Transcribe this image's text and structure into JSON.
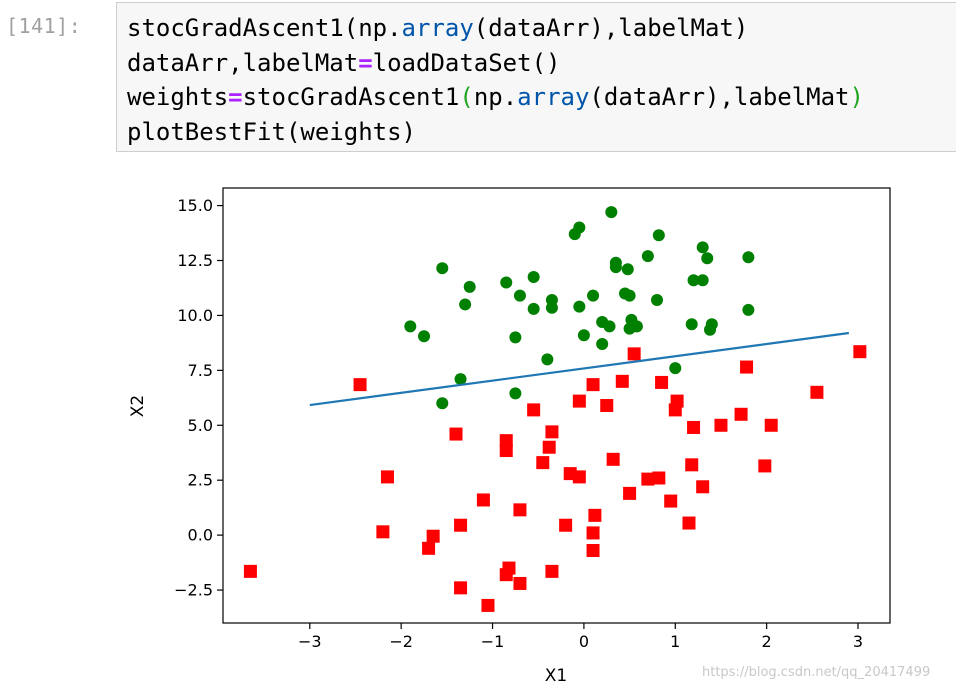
{
  "cell": {
    "prompt": "[141]:",
    "lines": [
      [
        {
          "t": "stocGradAscent1(np."
        },
        {
          "t": "array",
          "c": "attr"
        },
        {
          "t": "(dataArr),labelMat)"
        }
      ],
      [
        {
          "t": "dataArr,labelMat"
        },
        {
          "t": "=",
          "c": "op"
        },
        {
          "t": "loadDataSet()"
        }
      ],
      [
        {
          "t": "weights"
        },
        {
          "t": "=",
          "c": "op"
        },
        {
          "t": "stocGradAscent1"
        },
        {
          "t": "(",
          "c": "paren"
        },
        {
          "t": "np."
        },
        {
          "t": "array",
          "c": "attr"
        },
        {
          "t": "(dataArr),labelMat"
        },
        {
          "t": ")",
          "c": "paren"
        }
      ],
      [
        {
          "t": "plotBestFit(weights)"
        }
      ]
    ]
  },
  "chart_data": {
    "type": "scatter",
    "xlabel": "X1",
    "ylabel": "X2",
    "xlim": [
      -3.95,
      3.35
    ],
    "ylim": [
      -4.0,
      15.8
    ],
    "x_ticks": [
      -3,
      -2,
      -1,
      0,
      1,
      2,
      3
    ],
    "x_tick_labels": [
      "−3",
      "−2",
      "−1",
      "0",
      "1",
      "2",
      "3"
    ],
    "y_ticks": [
      -2.5,
      0.0,
      2.5,
      5.0,
      7.5,
      10.0,
      12.5,
      15.0
    ],
    "y_tick_labels": [
      "−2.5",
      "0.0",
      "2.5",
      "5.0",
      "7.5",
      "10.0",
      "12.5",
      "15.0"
    ],
    "grid": false,
    "series": [
      {
        "marker": "circle",
        "color": "#008000",
        "points": [
          [
            -1.55,
            12.15
          ],
          [
            -1.25,
            11.3
          ],
          [
            -1.3,
            10.5
          ],
          [
            -0.85,
            11.5
          ],
          [
            -0.55,
            11.75
          ],
          [
            -0.7,
            10.9
          ],
          [
            -0.35,
            10.7
          ],
          [
            -0.35,
            10.35
          ],
          [
            -0.55,
            10.3
          ],
          [
            -1.9,
            9.5
          ],
          [
            -1.75,
            9.05
          ],
          [
            -0.75,
            9.0
          ],
          [
            -0.4,
            8.0
          ],
          [
            -1.35,
            7.1
          ],
          [
            -1.55,
            6.0
          ],
          [
            -0.75,
            6.45
          ],
          [
            -0.1,
            13.7
          ],
          [
            -0.05,
            14.0
          ],
          [
            0.3,
            14.7
          ],
          [
            0.35,
            12.4
          ],
          [
            0.35,
            12.2
          ],
          [
            0.48,
            12.1
          ],
          [
            0.7,
            12.7
          ],
          [
            0.82,
            13.65
          ],
          [
            1.3,
            13.1
          ],
          [
            1.35,
            12.6
          ],
          [
            1.2,
            11.6
          ],
          [
            1.3,
            11.6
          ],
          [
            1.8,
            12.65
          ],
          [
            1.8,
            10.25
          ],
          [
            0.8,
            10.7
          ],
          [
            -0.05,
            10.4
          ],
          [
            0.1,
            10.9
          ],
          [
            0.45,
            11.0
          ],
          [
            0.5,
            10.9
          ],
          [
            0.2,
            9.7
          ],
          [
            0.28,
            9.5
          ],
          [
            0.5,
            9.4
          ],
          [
            0.52,
            9.8
          ],
          [
            0.58,
            9.5
          ],
          [
            0.0,
            9.1
          ],
          [
            0.2,
            8.7
          ],
          [
            1.18,
            9.6
          ],
          [
            1.38,
            9.35
          ],
          [
            1.4,
            9.6
          ],
          [
            1.0,
            7.6
          ]
        ]
      },
      {
        "marker": "square",
        "color": "#ff0000",
        "points": [
          [
            -3.65,
            -1.65
          ],
          [
            -2.45,
            6.85
          ],
          [
            -2.15,
            2.65
          ],
          [
            -2.2,
            0.15
          ],
          [
            -1.7,
            -0.6
          ],
          [
            -1.65,
            -0.05
          ],
          [
            -1.4,
            4.6
          ],
          [
            -1.35,
            0.45
          ],
          [
            -1.35,
            -2.4
          ],
          [
            -1.1,
            1.6
          ],
          [
            -1.05,
            -3.2
          ],
          [
            -0.85,
            4.3
          ],
          [
            -0.85,
            3.85
          ],
          [
            -0.85,
            -1.8
          ],
          [
            -0.82,
            -1.5
          ],
          [
            -0.7,
            1.15
          ],
          [
            -0.7,
            -2.2
          ],
          [
            -0.55,
            5.7
          ],
          [
            -0.45,
            3.3
          ],
          [
            -0.38,
            4.0
          ],
          [
            -0.35,
            4.7
          ],
          [
            -0.35,
            -1.65
          ],
          [
            -0.2,
            0.45
          ],
          [
            -0.15,
            2.8
          ],
          [
            -0.05,
            2.65
          ],
          [
            -0.05,
            6.1
          ],
          [
            0.1,
            6.85
          ],
          [
            0.1,
            -0.7
          ],
          [
            0.12,
            0.9
          ],
          [
            0.1,
            0.1
          ],
          [
            0.25,
            5.9
          ],
          [
            0.32,
            3.45
          ],
          [
            0.42,
            7.0
          ],
          [
            0.5,
            1.9
          ],
          [
            0.55,
            8.25
          ],
          [
            0.7,
            2.55
          ],
          [
            0.82,
            2.6
          ],
          [
            0.85,
            6.95
          ],
          [
            0.95,
            1.55
          ],
          [
            1.02,
            6.1
          ],
          [
            1.0,
            5.7
          ],
          [
            1.15,
            0.55
          ],
          [
            1.18,
            3.2
          ],
          [
            1.2,
            4.9
          ],
          [
            1.3,
            2.2
          ],
          [
            1.5,
            5.0
          ],
          [
            1.72,
            5.5
          ],
          [
            1.78,
            7.65
          ],
          [
            1.98,
            3.15
          ],
          [
            2.05,
            5.0
          ],
          [
            2.55,
            6.5
          ],
          [
            3.02,
            8.35
          ]
        ]
      }
    ],
    "line": {
      "color": "#1f77b4",
      "x_range": [
        -3.0,
        2.9
      ],
      "y_range": [
        5.92,
        9.2
      ]
    }
  },
  "watermark": "https://blog.csdn.net/qq_20417499"
}
